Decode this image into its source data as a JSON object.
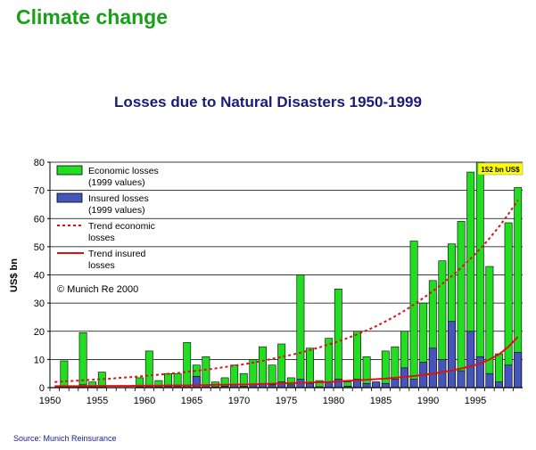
{
  "slide": {
    "title": "Climate change",
    "source": "Source: Munich Reinsurance"
  },
  "colors": {
    "economic": "#22dd22",
    "insured": "#4455bb",
    "trend": "#dd1111",
    "title_green": "#18a018",
    "title_navy": "#1a1a7a",
    "callout_bg": "#ffff00"
  },
  "chart_data": {
    "type": "bar",
    "title": "Losses due to Natural Disasters 1950-1999",
    "ylabel": "US$ bn",
    "xlabel": "",
    "ylim": [
      0,
      80
    ],
    "yticks": [
      0,
      10,
      20,
      30,
      40,
      50,
      60,
      70,
      80
    ],
    "xticks": [
      1950,
      1955,
      1960,
      1965,
      1970,
      1975,
      1980,
      1985,
      1990,
      1995
    ],
    "grid": true,
    "legend_position": "top-left",
    "categories": [
      1950,
      1951,
      1952,
      1953,
      1954,
      1955,
      1956,
      1957,
      1958,
      1959,
      1960,
      1961,
      1962,
      1963,
      1964,
      1965,
      1966,
      1967,
      1968,
      1969,
      1970,
      1971,
      1972,
      1973,
      1974,
      1975,
      1976,
      1977,
      1978,
      1979,
      1980,
      1981,
      1982,
      1983,
      1984,
      1985,
      1986,
      1987,
      1988,
      1989,
      1990,
      1991,
      1992,
      1993,
      1994,
      1995,
      1996,
      1997,
      1998,
      1999
    ],
    "series": [
      {
        "name": "Economic losses (1999 values)",
        "kind": "bar",
        "values": [
          0,
          9.5,
          0,
          19.5,
          2,
          5.5,
          0,
          0,
          0,
          3.5,
          13,
          2.5,
          5,
          5,
          16,
          8,
          11,
          2,
          3.5,
          8,
          5,
          10,
          14.5,
          8,
          15.5,
          3.5,
          40,
          14,
          2.5,
          17.5,
          35,
          2,
          20,
          11,
          2,
          13,
          14.5,
          20,
          52,
          30,
          38,
          45,
          51,
          59,
          76.5,
          80,
          43,
          12,
          58.5,
          71
        ]
      },
      {
        "name": "Insured losses (1999 values)",
        "kind": "bar",
        "values": [
          0,
          0.5,
          0,
          1,
          0.3,
          0.5,
          0,
          0,
          0,
          0.3,
          0.5,
          0.3,
          0.5,
          0.5,
          1,
          4,
          1,
          0.3,
          0.5,
          1,
          0.5,
          1,
          1.5,
          1,
          2,
          1,
          3,
          1.5,
          0.3,
          2,
          3,
          0.5,
          3,
          1.5,
          2,
          1.5,
          3,
          7,
          3,
          9,
          14,
          10,
          23.5,
          6,
          20,
          11,
          5,
          2,
          8,
          12.5
        ]
      },
      {
        "name": "Trend economic losses",
        "kind": "line",
        "values": [
          2.0,
          2.2,
          2.4,
          2.6,
          2.8,
          3.0,
          3.2,
          3.5,
          3.7,
          4.0,
          4.3,
          4.6,
          4.9,
          5.2,
          5.6,
          6.0,
          6.4,
          6.8,
          7.3,
          7.8,
          8.3,
          8.9,
          9.5,
          10.2,
          10.9,
          11.6,
          12.4,
          13.3,
          14.3,
          15.3,
          16.4,
          17.6,
          18.9,
          20.3,
          21.8,
          23.5,
          25.3,
          27.3,
          29.5,
          31.8,
          34.2,
          36.8,
          39.6,
          42.6,
          45.8,
          49.2,
          53.0,
          57.1,
          61.6,
          66.5
        ]
      },
      {
        "name": "Trend insured losses",
        "kind": "line",
        "values": [
          0.5,
          0.5,
          0.5,
          0.5,
          0.6,
          0.6,
          0.6,
          0.6,
          0.6,
          0.7,
          0.7,
          0.7,
          0.8,
          0.8,
          0.8,
          0.9,
          0.9,
          1.0,
          1.0,
          1.1,
          1.1,
          1.2,
          1.3,
          1.4,
          1.5,
          1.6,
          1.7,
          1.8,
          1.9,
          2.0,
          2.2,
          2.4,
          2.6,
          2.8,
          3.0,
          3.2,
          3.5,
          3.8,
          4.1,
          4.5,
          5.0,
          5.5,
          6.1,
          6.8,
          7.6,
          8.5,
          10.0,
          11.8,
          14.5,
          18.0
        ]
      }
    ],
    "annotations": {
      "copyright": "© Munich Re 2000",
      "callout": "152 bn US$"
    }
  }
}
